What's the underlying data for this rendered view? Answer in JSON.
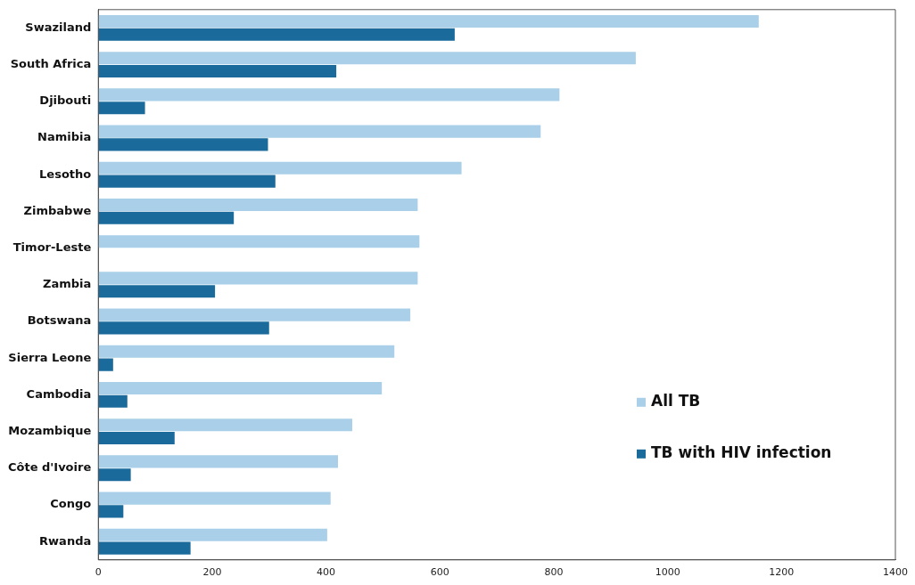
{
  "chart_data": {
    "type": "bar",
    "orientation": "horizontal",
    "categories": [
      "Swaziland",
      "South Africa",
      "Djibouti",
      "Namibia",
      "Lesotho",
      "Zimbabwe",
      "Timor-Leste",
      "Zambia",
      "Botswana",
      "Sierra Leone",
      "Cambodia",
      "Mozambique",
      "Côte d'Ivoire",
      "Congo",
      "Rwanda"
    ],
    "series": [
      {
        "name": "All TB",
        "color": "#a9cfe9",
        "values": [
          1160,
          944,
          810,
          777,
          638,
          561,
          564,
          561,
          548,
          520,
          498,
          446,
          421,
          408,
          402
        ]
      },
      {
        "name": "TB with HIV infection",
        "color": "#1a6b9c",
        "values": [
          626,
          418,
          82,
          298,
          311,
          238,
          null,
          205,
          300,
          26,
          51,
          134,
          57,
          44,
          162
        ]
      }
    ],
    "xlim": [
      0,
      1400
    ],
    "xticks": [
      0,
      200,
      400,
      600,
      800,
      1000,
      1200,
      1400
    ],
    "grid": false,
    "legend": "bottom right"
  }
}
